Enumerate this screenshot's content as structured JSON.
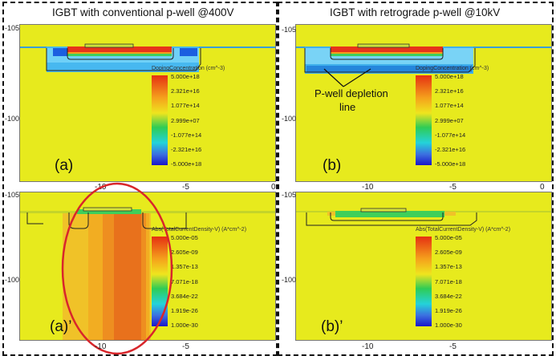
{
  "columns": [
    {
      "title": "IGBT with conventional p-well @400V",
      "top_panel": {
        "label": "(a)",
        "legend_title": "DopingConcentration (cm^-3)",
        "legend_values": [
          "5.000e+18",
          "2.321e+16",
          "1.077e+14",
          "2.999e+07",
          "-1.077e+14",
          "-2.321e+16",
          "-5.000e+18"
        ],
        "y_ticks": [
          "-105",
          "-100"
        ],
        "x_ticks": [
          "-10",
          "-5",
          "0"
        ]
      },
      "bottom_panel": {
        "label": "(a)’",
        "legend_title": "Abs(TotalCurrentDensity-V) (A*cm^-2)",
        "legend_values": [
          "5.000e-05",
          "2.605e-09",
          "1.357e-13",
          "7.071e-18",
          "3.684e-22",
          "1.919e-26",
          "1.000e-30"
        ],
        "y_ticks": [
          "-105",
          "-100"
        ],
        "x_ticks": [
          "-10",
          "-5",
          "0"
        ]
      }
    },
    {
      "title": "IGBT with retrograde p-well @10kV",
      "top_panel": {
        "label": "(b)",
        "legend_title": "DopingConcentration (cm^-3)",
        "legend_values": [
          "5.000e+18",
          "2.321e+16",
          "1.077e+14",
          "2.999e+07",
          "-1.077e+14",
          "-2.321e+16",
          "-5.000e+18"
        ],
        "annotation_lines": [
          "P-well depletion",
          "line"
        ],
        "y_ticks": [
          "-105",
          "-100"
        ],
        "x_ticks": [
          "-10",
          "-5",
          "0"
        ]
      },
      "bottom_panel": {
        "label": "(b)’",
        "legend_title": "Abs(TotalCurrentDensity-V) (A*cm^-2)",
        "legend_values": [
          "5.000e-05",
          "2.605e-09",
          "1.357e-13",
          "7.071e-18",
          "3.684e-22",
          "1.919e-26",
          "1.000e-30"
        ],
        "y_ticks": [
          "-105",
          "-100"
        ],
        "x_ticks": [
          "-10",
          "-5",
          "0"
        ]
      }
    }
  ],
  "colors": {
    "background_field": "#e7ea1d",
    "doping_gradient": [
      "#e53012",
      "#f5a11c",
      "#efe51e",
      "#2fcc55",
      "#24d3d9",
      "#3b6fe0",
      "#1a16c9"
    ],
    "current_gradient": [
      "#e53012",
      "#f5a11c",
      "#efe51e",
      "#2fcc55",
      "#24d3d9",
      "#3b6fe0",
      "#1a16c9"
    ],
    "highlight_ellipse": "#d8262b"
  }
}
